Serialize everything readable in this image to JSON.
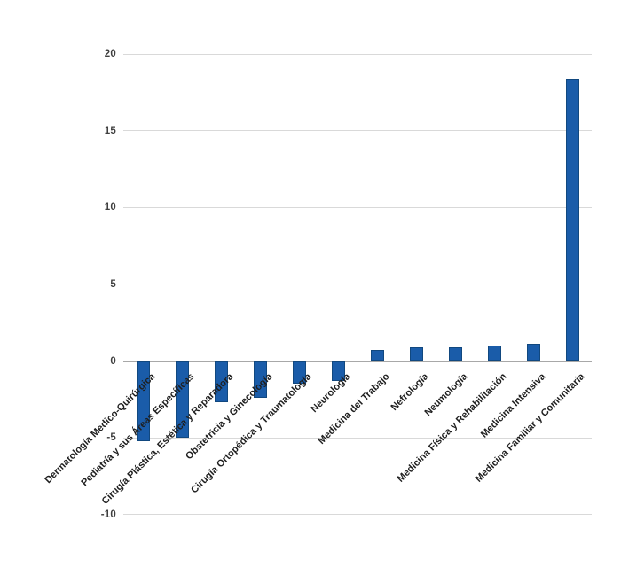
{
  "chart_data": {
    "type": "bar",
    "title": "",
    "xlabel": "",
    "ylabel": "",
    "categories": [
      "Dermatología Médico-Quirúrgica",
      "Pediatría y sus Áreas Específicas",
      "Cirugía Plástica, Estética y Reparadora",
      "Obstetricia y Ginecología",
      "Cirugía Ortopédica y Traumatología",
      "Neurología",
      "Medicina del Trabajo",
      "Nefrología",
      "Neumología",
      "Medicina Física y Rehabilitación",
      "Medicina Intensiva",
      "Medicina Familiar y Comunitaria"
    ],
    "values": [
      -5.2,
      -5.0,
      -2.7,
      -2.4,
      -1.5,
      -1.3,
      0.7,
      0.9,
      0.9,
      1.0,
      1.1,
      18.4
    ],
    "ylim": [
      -10,
      20
    ],
    "yticks": [
      20,
      15,
      10,
      5,
      0,
      -5,
      -10
    ],
    "ytick_labels": [
      "20",
      "15",
      "10",
      "5",
      "0",
      "-5",
      "-10"
    ],
    "grid": true,
    "legend": false,
    "colors": {
      "bar_fill": "#1A5CA9",
      "bar_border": "#11487F",
      "gridline": "#D9D9D9",
      "zero_axis": "#A8A8A8",
      "category_label": "#1F1F1F",
      "tick_label": "#3F3F3F",
      "background": "#FFFFFF"
    }
  }
}
